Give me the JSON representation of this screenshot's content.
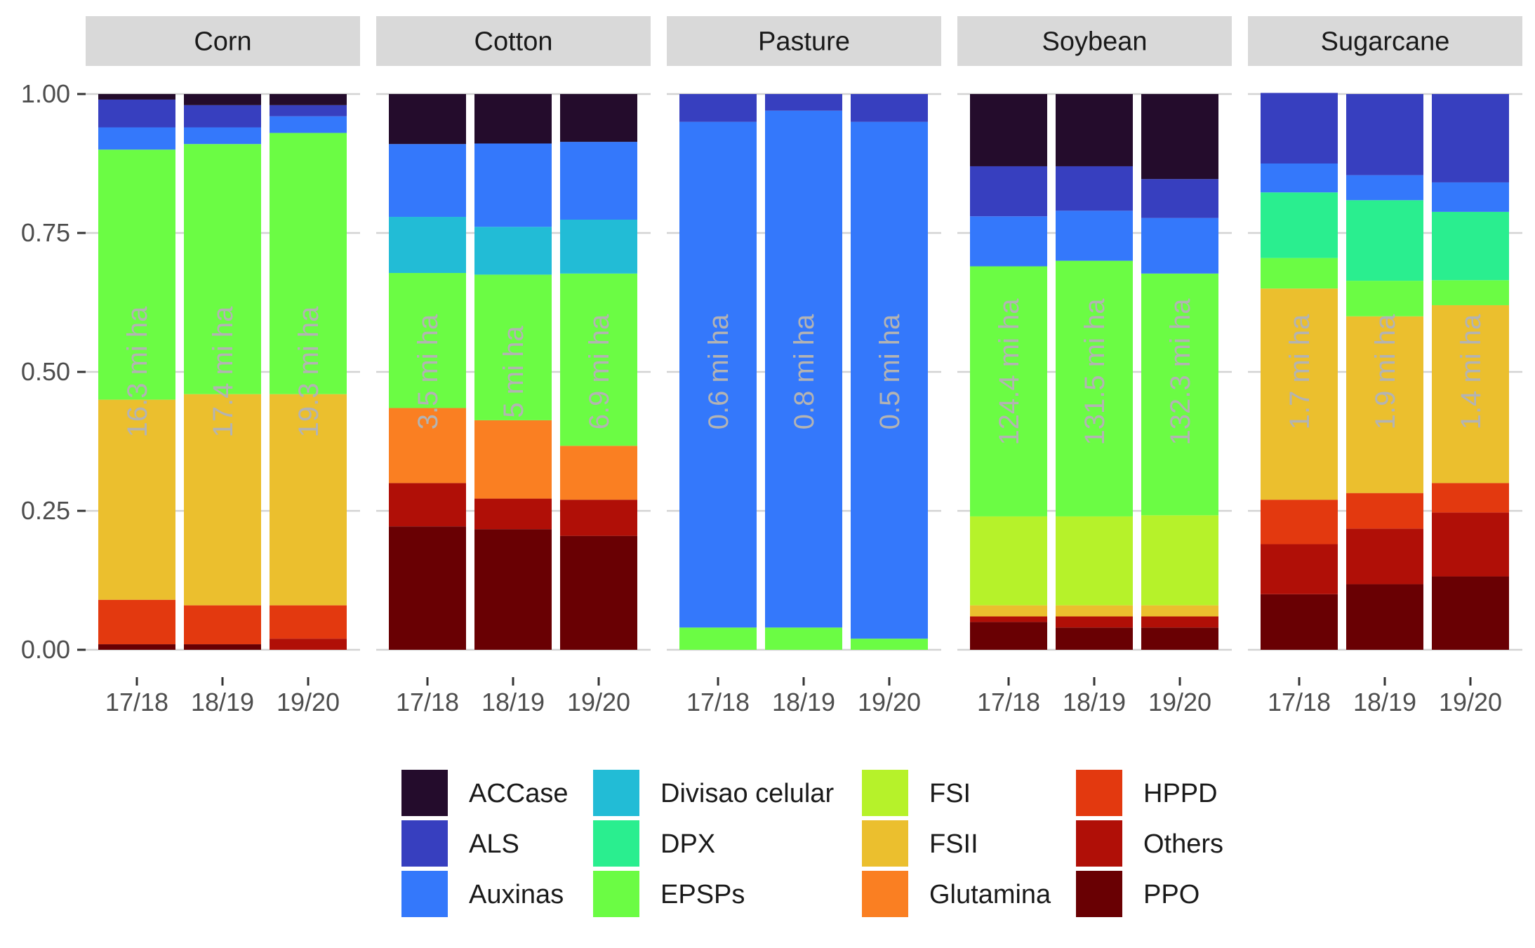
{
  "chart_data": {
    "type": "bar",
    "stacked": true,
    "normalized": true,
    "facets": [
      {
        "name": "Corn",
        "categories": [
          "17/18",
          "18/19",
          "19/20"
        ],
        "bar_labels": [
          "16.3 mi ha",
          "17.4 mi ha",
          "19.3 mi ha"
        ],
        "series": [
          {
            "name": "PPO",
            "values": [
              0.01,
              0.01,
              0.0
            ]
          },
          {
            "name": "Others",
            "values": [
              0.0,
              0.0,
              0.02
            ]
          },
          {
            "name": "HPPD",
            "values": [
              0.08,
              0.07,
              0.06
            ]
          },
          {
            "name": "Glutamina",
            "values": [
              0.0,
              0.0,
              0.0
            ]
          },
          {
            "name": "FSII",
            "values": [
              0.36,
              0.38,
              0.38
            ]
          },
          {
            "name": "FSI",
            "values": [
              0.0,
              0.0,
              0.0
            ]
          },
          {
            "name": "EPSPs",
            "values": [
              0.45,
              0.45,
              0.47
            ]
          },
          {
            "name": "DPX",
            "values": [
              0.0,
              0.0,
              0.0
            ]
          },
          {
            "name": "Divisao celular",
            "values": [
              0.0,
              0.0,
              0.0
            ]
          },
          {
            "name": "Auxinas",
            "values": [
              0.04,
              0.03,
              0.03
            ]
          },
          {
            "name": "ALS",
            "values": [
              0.05,
              0.04,
              0.02
            ]
          },
          {
            "name": "ACCase",
            "values": [
              0.01,
              0.02,
              0.02
            ]
          }
        ]
      },
      {
        "name": "Cotton",
        "categories": [
          "17/18",
          "18/19",
          "19/20"
        ],
        "bar_labels": [
          "3.5 mi ha",
          "5 mi ha",
          "6.9 mi ha"
        ],
        "series": [
          {
            "name": "PPO",
            "values": [
              0.222,
              0.217,
              0.205
            ]
          },
          {
            "name": "Others",
            "values": [
              0.078,
              0.055,
              0.065
            ]
          },
          {
            "name": "HPPD",
            "values": [
              0.0,
              0.0,
              0.0
            ]
          },
          {
            "name": "Glutamina",
            "values": [
              0.135,
              0.141,
              0.097
            ]
          },
          {
            "name": "FSII",
            "values": [
              0.0,
              0.0,
              0.0
            ]
          },
          {
            "name": "FSI",
            "values": [
              0.0,
              0.0,
              0.0
            ]
          },
          {
            "name": "EPSPs",
            "values": [
              0.243,
              0.262,
              0.31
            ]
          },
          {
            "name": "DPX",
            "values": [
              0.0,
              0.0,
              0.0
            ]
          },
          {
            "name": "Divisao celular",
            "values": [
              0.101,
              0.086,
              0.097
            ]
          },
          {
            "name": "Auxinas",
            "values": [
              0.131,
              0.15,
              0.14
            ]
          },
          {
            "name": "ALS",
            "values": [
              0.0,
              0.0,
              0.0
            ]
          },
          {
            "name": "ACCase",
            "values": [
              0.09,
              0.089,
              0.086
            ]
          }
        ]
      },
      {
        "name": "Pasture",
        "categories": [
          "17/18",
          "18/19",
          "19/20"
        ],
        "bar_labels": [
          "0.6 mi ha",
          "0.8 mi ha",
          "0.5 mi ha"
        ],
        "series": [
          {
            "name": "PPO",
            "values": [
              0.0,
              0.0,
              0.0
            ]
          },
          {
            "name": "Others",
            "values": [
              0.0,
              0.0,
              0.0
            ]
          },
          {
            "name": "HPPD",
            "values": [
              0.0,
              0.0,
              0.0
            ]
          },
          {
            "name": "Glutamina",
            "values": [
              0.0,
              0.0,
              0.0
            ]
          },
          {
            "name": "FSII",
            "values": [
              0.0,
              0.0,
              0.0
            ]
          },
          {
            "name": "FSI",
            "values": [
              0.0,
              0.0,
              0.0
            ]
          },
          {
            "name": "EPSPs",
            "values": [
              0.04,
              0.04,
              0.02
            ]
          },
          {
            "name": "DPX",
            "values": [
              0.0,
              0.0,
              0.0
            ]
          },
          {
            "name": "Divisao celular",
            "values": [
              0.0,
              0.0,
              0.0
            ]
          },
          {
            "name": "Auxinas",
            "values": [
              0.91,
              0.93,
              0.93
            ]
          },
          {
            "name": "ALS",
            "values": [
              0.05,
              0.03,
              0.05
            ]
          },
          {
            "name": "ACCase",
            "values": [
              0.0,
              0.0,
              0.0
            ]
          }
        ]
      },
      {
        "name": "Soybean",
        "categories": [
          "17/18",
          "18/19",
          "19/20"
        ],
        "bar_labels": [
          "124.4 mi ha",
          "131.5 mi ha",
          "132.3 mi ha"
        ],
        "series": [
          {
            "name": "PPO",
            "values": [
              0.05,
              0.04,
              0.04
            ]
          },
          {
            "name": "Others",
            "values": [
              0.01,
              0.02,
              0.02
            ]
          },
          {
            "name": "HPPD",
            "values": [
              0.0,
              0.0,
              0.0
            ]
          },
          {
            "name": "Glutamina",
            "values": [
              0.0,
              0.0,
              0.0
            ]
          },
          {
            "name": "FSII",
            "values": [
              0.02,
              0.02,
              0.02
            ]
          },
          {
            "name": "FSI",
            "values": [
              0.16,
              0.16,
              0.162
            ]
          },
          {
            "name": "EPSPs",
            "values": [
              0.45,
              0.46,
              0.435
            ]
          },
          {
            "name": "DPX",
            "values": [
              0.0,
              0.0,
              0.0
            ]
          },
          {
            "name": "Divisao celular",
            "values": [
              0.0,
              0.0,
              0.0
            ]
          },
          {
            "name": "Auxinas",
            "values": [
              0.09,
              0.09,
              0.1
            ]
          },
          {
            "name": "ALS",
            "values": [
              0.09,
              0.08,
              0.07
            ]
          },
          {
            "name": "ACCase",
            "values": [
              0.13,
              0.13,
              0.153
            ]
          }
        ]
      },
      {
        "name": "Sugarcane",
        "categories": [
          "17/18",
          "18/19",
          "19/20"
        ],
        "bar_labels": [
          "1.7 mi ha",
          "1.9 mi ha",
          "1.4 mi ha"
        ],
        "series": [
          {
            "name": "PPO",
            "values": [
              0.1,
              0.118,
              0.132
            ]
          },
          {
            "name": "Others",
            "values": [
              0.09,
              0.1,
              0.115
            ]
          },
          {
            "name": "HPPD",
            "values": [
              0.08,
              0.064,
              0.053
            ]
          },
          {
            "name": "Glutamina",
            "values": [
              0.0,
              0.0,
              0.0
            ]
          },
          {
            "name": "FSII",
            "values": [
              0.38,
              0.318,
              0.32
            ]
          },
          {
            "name": "FSI",
            "values": [
              0.0,
              0.0,
              0.0
            ]
          },
          {
            "name": "EPSPs",
            "values": [
              0.055,
              0.064,
              0.045
            ]
          },
          {
            "name": "DPX",
            "values": [
              0.118,
              0.145,
              0.123
            ]
          },
          {
            "name": "Divisao celular",
            "values": [
              0.0,
              0.0,
              0.0
            ]
          },
          {
            "name": "Auxinas",
            "values": [
              0.052,
              0.045,
              0.053
            ]
          },
          {
            "name": "ALS",
            "values": [
              0.127,
              0.146,
              0.159
            ]
          },
          {
            "name": "ACCase",
            "values": [
              0.0,
              0.0,
              0.0
            ]
          }
        ]
      }
    ],
    "ylim": [
      0,
      1
    ],
    "yticks": [
      "0.00",
      "0.25",
      "0.50",
      "0.75",
      "1.00"
    ],
    "ytick_values": [
      0,
      0.25,
      0.5,
      0.75,
      1
    ],
    "xlabel": "",
    "ylabel": "",
    "title": "",
    "grid": true,
    "legend": {
      "position": "bottom",
      "columns": [
        [
          "ACCase",
          "ALS",
          "Auxinas"
        ],
        [
          "Divisao celular",
          "DPX",
          "EPSPs"
        ],
        [
          "FSI",
          "FSII",
          "Glutamina"
        ],
        [
          "HPPD",
          "Others",
          "PPO"
        ]
      ]
    },
    "colors": {
      "ACCase": "#240c2c",
      "ALS": "#373fbf",
      "Auxinas": "#3478fb",
      "Divisao celular": "#22bcd6",
      "DPX": "#2aee8f",
      "EPSPs": "#6bfc44",
      "FSI": "#b6f22a",
      "FSII": "#ebbf2e",
      "Glutamina": "#fa7f22",
      "HPPD": "#e3390f",
      "Others": "#b00f07",
      "PPO": "#690003"
    }
  }
}
